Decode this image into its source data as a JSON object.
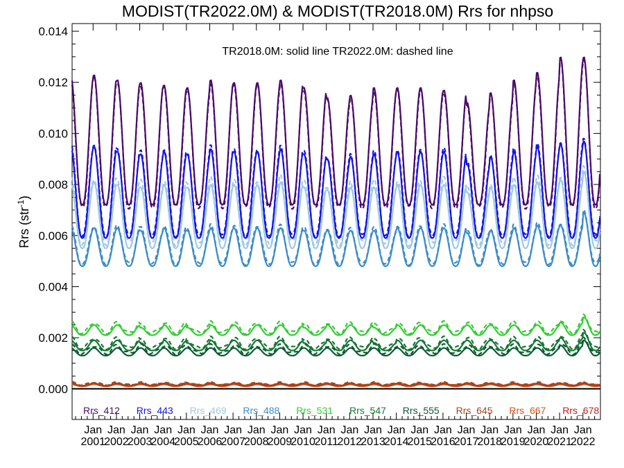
{
  "chart_data": {
    "type": "line",
    "title": "MODIST(TR2022.0M) & MODIST(TR2018.0M)  Rrs for nhpso",
    "annotation": "TR2018.0M: solid line   TR2022.0M: dashed line",
    "ylabel_main": "Rrs (str",
    "ylabel_sup": "-1",
    "ylabel_close": ")",
    "ylim": [
      -0.0012,
      0.0143
    ],
    "yticks": [
      0.0,
      0.002,
      0.004,
      0.006,
      0.008,
      0.01,
      0.012,
      0.014
    ],
    "ytick_labels": [
      "0.000",
      "0.002",
      "0.004",
      "0.006",
      "0.008",
      "0.010",
      "0.012",
      "0.014"
    ],
    "xlim": [
      2000.1,
      2022.75
    ],
    "xtick_month": "Jan",
    "xtick_years": [
      2001,
      2002,
      2003,
      2004,
      2005,
      2006,
      2007,
      2008,
      2009,
      2010,
      2011,
      2012,
      2013,
      2014,
      2015,
      2016,
      2017,
      2018,
      2019,
      2020,
      2021,
      2022
    ],
    "zero_line": 0,
    "legend_position": "bottom",
    "series": [
      {
        "name": "Rrs_412",
        "color": "#4b0a6b",
        "min": 0.0072,
        "peak": [
          0.0123,
          0.0121,
          0.012,
          0.0119,
          0.0118,
          0.0121,
          0.012,
          0.012,
          0.0121,
          0.0118,
          0.0114,
          0.0115,
          0.0118,
          0.0118,
          0.0118,
          0.0117,
          0.0112,
          0.0116,
          0.0121,
          0.0124,
          0.013,
          0.013
        ],
        "dash_offset": -0.0001
      },
      {
        "name": "Rrs_443",
        "color": "#1414e6",
        "min": 0.0059,
        "peak": [
          0.0095,
          0.0093,
          0.0092,
          0.0093,
          0.0092,
          0.0094,
          0.0093,
          0.0093,
          0.0094,
          0.0092,
          0.009,
          0.0091,
          0.0092,
          0.0093,
          0.0093,
          0.0093,
          0.0088,
          0.0091,
          0.0093,
          0.0095,
          0.0096,
          0.0097
        ],
        "dash_offset": 0.0001
      },
      {
        "name": "Rrs_469",
        "color": "#a0c8e6",
        "min": 0.0055,
        "peak": [
          0.0081,
          0.008,
          0.0079,
          0.008,
          0.0079,
          0.008,
          0.008,
          0.008,
          0.0081,
          0.0079,
          0.0078,
          0.0079,
          0.0079,
          0.008,
          0.008,
          0.008,
          0.0077,
          0.0079,
          0.008,
          0.0081,
          0.0082,
          0.0085
        ],
        "dash_offset": 0.0002
      },
      {
        "name": "Rrs_488",
        "color": "#3c8cc8",
        "min": 0.0048,
        "peak": [
          0.0063,
          0.0063,
          0.0062,
          0.0063,
          0.0062,
          0.0063,
          0.0063,
          0.0063,
          0.0063,
          0.0062,
          0.0062,
          0.0062,
          0.0062,
          0.0063,
          0.0063,
          0.0063,
          0.0061,
          0.0062,
          0.0063,
          0.0064,
          0.0064,
          0.0069
        ],
        "dash_offset": 0.0001
      },
      {
        "name": "Rrs_531",
        "color": "#32cd32",
        "min": 0.0021,
        "peak": [
          0.0025,
          0.0025,
          0.0024,
          0.0025,
          0.0024,
          0.0025,
          0.0025,
          0.0025,
          0.0025,
          0.0024,
          0.0025,
          0.0025,
          0.0024,
          0.0025,
          0.0025,
          0.0025,
          0.0025,
          0.0025,
          0.0025,
          0.0025,
          0.0026,
          0.0028
        ],
        "dash_offset": 0.0001
      },
      {
        "name": "Rrs_547",
        "color": "#147832",
        "min": 0.0015,
        "peak": [
          0.0019,
          0.0019,
          0.0018,
          0.0019,
          0.0018,
          0.0019,
          0.0019,
          0.0019,
          0.0019,
          0.0018,
          0.0019,
          0.0019,
          0.0018,
          0.0019,
          0.0019,
          0.0019,
          0.0019,
          0.0019,
          0.0019,
          0.0019,
          0.002,
          0.0022
        ],
        "dash_offset": 0.0001
      },
      {
        "name": "Rrs_555",
        "color": "#0a5a32",
        "min": 0.0013,
        "peak": [
          0.0016,
          0.0016,
          0.0016,
          0.0016,
          0.0016,
          0.0016,
          0.0016,
          0.0016,
          0.0016,
          0.0016,
          0.0016,
          0.0016,
          0.0016,
          0.0016,
          0.0016,
          0.0016,
          0.0016,
          0.0016,
          0.0016,
          0.0016,
          0.0017,
          0.0019
        ],
        "dash_offset": 0.0001
      },
      {
        "name": "Rrs_645",
        "color": "#a0461e",
        "min": 0.00012,
        "peak": [
          0.00022,
          0.00021,
          0.00021,
          0.00021,
          0.00021,
          0.00021,
          0.00021,
          0.00021,
          0.00021,
          0.00021,
          0.00021,
          0.00021,
          0.00021,
          0.00021,
          0.00021,
          0.00021,
          0.00021,
          0.00021,
          0.00021,
          0.00021,
          0.00021,
          0.00022
        ],
        "dash_offset": 4e-05
      },
      {
        "name": "Rrs_667",
        "color": "#dc5014",
        "min": 0.0001,
        "peak": [
          0.00018,
          0.00017,
          0.00017,
          0.00017,
          0.00017,
          0.00017,
          0.00017,
          0.00017,
          0.00017,
          0.00017,
          0.00017,
          0.00017,
          0.00017,
          0.00017,
          0.00017,
          0.00017,
          0.00017,
          0.00017,
          0.00017,
          0.00017,
          0.00017,
          0.00018
        ],
        "dash_offset": 4e-05
      },
      {
        "name": "Rrs_678",
        "color": "#c81e1e",
        "min": 0.00012,
        "peak": [
          0.00019,
          0.00018,
          0.00018,
          0.00018,
          0.00018,
          0.00018,
          0.00018,
          0.00018,
          0.00018,
          0.00018,
          0.00018,
          0.00018,
          0.00018,
          0.00018,
          0.00018,
          0.00018,
          0.00018,
          0.00018,
          0.00018,
          0.00018,
          0.00018,
          0.00019
        ],
        "dash_offset": 3e-05
      }
    ]
  }
}
